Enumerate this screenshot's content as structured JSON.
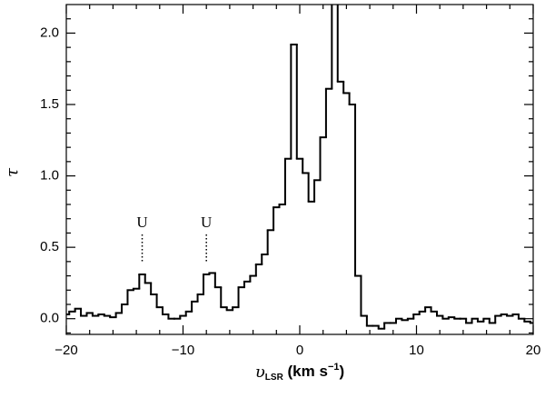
{
  "chart_data": {
    "type": "step",
    "ylabel": "τ",
    "xlabel": {
      "symbol": "υ",
      "subscript": "LSR",
      "unit": " (km s",
      "superscript": "−1",
      "close": ")"
    },
    "x": [
      -20,
      -19.5,
      -19,
      -18.5,
      -18,
      -17.5,
      -17,
      -16.5,
      -16,
      -15.5,
      -15,
      -14.5,
      -14,
      -13.5,
      -13,
      -12.5,
      -12,
      -11.5,
      -11,
      -10.5,
      -10,
      -9.5,
      -9,
      -8.5,
      -8,
      -7.5,
      -7,
      -6.5,
      -6,
      -5.5,
      -5,
      -4.5,
      -4,
      -3.5,
      -3,
      -2.5,
      -2,
      -1.5,
      -1,
      -0.5,
      0,
      0.5,
      1,
      1.5,
      2,
      2.5,
      3,
      3.5,
      4,
      4.5,
      5,
      5.5,
      6,
      6.5,
      7,
      7.5,
      8,
      8.5,
      9,
      9.5,
      10,
      10.5,
      11,
      11.5,
      12,
      12.5,
      13,
      13.5,
      14,
      14.5,
      15,
      15.5,
      16,
      16.5,
      17,
      17.5,
      18,
      18.5,
      19,
      19.5,
      20
    ],
    "values": [
      0.03,
      0.05,
      0.07,
      0.02,
      0.04,
      0.02,
      0.03,
      0.02,
      0.01,
      0.04,
      0.1,
      0.2,
      0.21,
      0.31,
      0.25,
      0.17,
      0.08,
      0.03,
      0,
      0,
      0.02,
      0.05,
      0.12,
      0.17,
      0.31,
      0.32,
      0.22,
      0.08,
      0.06,
      0.08,
      0.22,
      0.26,
      0.3,
      0.38,
      0.45,
      0.62,
      0.78,
      0.8,
      1.12,
      1.92,
      1.12,
      1.02,
      0.82,
      0.97,
      1.27,
      1.61,
      2.3,
      1.66,
      1.58,
      1.5,
      0.3,
      0.02,
      -0.05,
      -0.05,
      -0.07,
      -0.03,
      -0.03,
      0,
      -0.01,
      0,
      0.03,
      0.05,
      0.08,
      0.05,
      0.02,
      0,
      0.01,
      0,
      0,
      -0.03,
      0,
      -0.02,
      0,
      -0.03,
      0.02,
      0.03,
      0.02,
      0.03,
      0,
      -0.02,
      -0.03
    ],
    "color": "#000000",
    "xlim": [
      -20,
      20
    ],
    "ylim": [
      -0.11,
      2.2
    ],
    "xticks": [
      {
        "value": -20,
        "label": "−20"
      },
      {
        "value": -10,
        "label": "−10"
      },
      0,
      10,
      20
    ],
    "yticks": [
      {
        "value": 0,
        "label": "0.0"
      },
      0.5,
      {
        "value": 1,
        "label": "1.0"
      },
      1.5,
      {
        "value": 2,
        "label": "2.0"
      }
    ],
    "annotations": [
      {
        "text": "U",
        "x": -13.5
      },
      {
        "text": "U",
        "x": -8
      }
    ]
  }
}
